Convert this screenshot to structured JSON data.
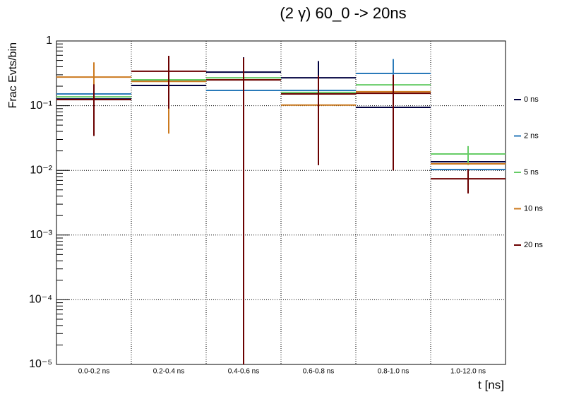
{
  "chart_data": {
    "type": "histogram-log",
    "title": "(2 γ) 60_0 -> 20ns",
    "x_label": "t [ns]",
    "y_label": "Frac Evts/bin",
    "categories": [
      "0.0-0.2 ns",
      "0.2-0.4 ns",
      "0.4-0.6 ns",
      "0.6-0.8 ns",
      "0.8-1.0 ns",
      "1.0-12.0 ns"
    ],
    "log_scale": true,
    "grid": true,
    "legend": "right",
    "ylim": [
      1e-05,
      1
    ],
    "yticks": [
      {
        "value": 1e-05,
        "label": "10⁻⁵"
      },
      {
        "value": 0.0001,
        "label": "10⁻⁴"
      },
      {
        "value": 0.001,
        "label": "10⁻³"
      },
      {
        "value": 0.01,
        "label": "10⁻²"
      },
      {
        "value": 0.1,
        "label": "10⁻¹"
      },
      1
    ],
    "series": [
      {
        "name": "0 ns",
        "color": "#00003f",
        "values": [
          0.127,
          0.205,
          0.33,
          0.27,
          0.094,
          0.0136
        ],
        "errors": [
          null,
          null,
          0.23,
          0.22,
          null,
          null
        ]
      },
      {
        "name": "2 ns",
        "color": "#2a7ab9",
        "values": [
          0.152,
          0.239,
          0.172,
          0.172,
          0.315,
          0.0103
        ],
        "errors": [
          null,
          null,
          null,
          null,
          0.21,
          null
        ]
      },
      {
        "name": "5 ns",
        "color": "#66cc66",
        "values": [
          0.137,
          0.251,
          0.27,
          0.16,
          0.21,
          0.0179
        ],
        "errors": [
          null,
          null,
          null,
          null,
          null,
          0.0058
        ]
      },
      {
        "name": "10 ns",
        "color": "#cc7a1f",
        "values": [
          0.277,
          0.237,
          0.251,
          0.102,
          0.164,
          0.0126
        ],
        "errors": [
          0.19,
          0.2,
          null,
          null,
          null,
          null
        ]
      },
      {
        "name": "20 ns",
        "color": "#6b0000",
        "values": [
          0.124,
          0.34,
          0.25,
          0.152,
          0.155,
          0.0074
        ],
        "errors": [
          0.09,
          0.25,
          0.3,
          0.14,
          0.145,
          0.003
        ]
      }
    ]
  }
}
